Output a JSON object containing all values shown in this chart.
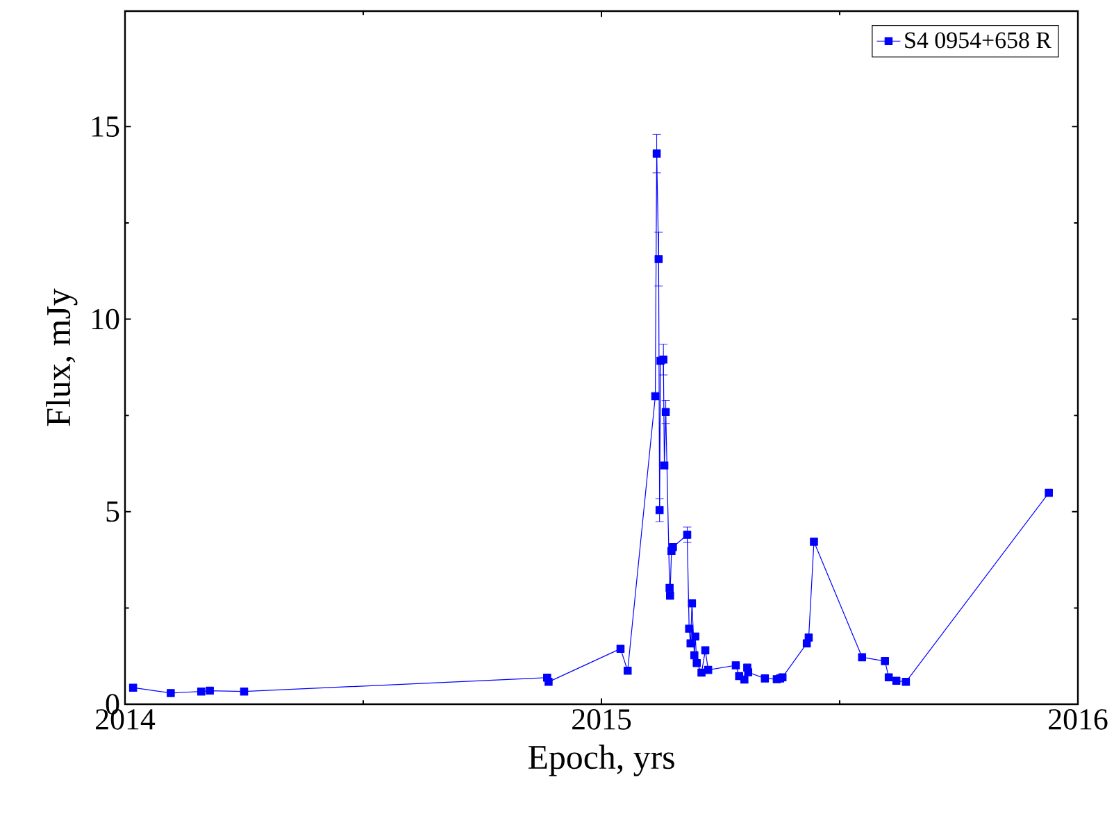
{
  "chart_data": {
    "type": "line",
    "xlabel": "Epoch, yrs",
    "ylabel": "Flux, mJy",
    "x": [
      2014.017,
      2014.096,
      2014.16,
      2014.178,
      2014.25,
      2014.886,
      2014.889,
      2015.04,
      2015.055,
      2015.113,
      2015.116,
      2015.12,
      2015.122,
      2015.124,
      2015.13,
      2015.132,
      2015.135,
      2015.143,
      2015.144,
      2015.147,
      2015.15,
      2015.18,
      2015.184,
      2015.187,
      2015.19,
      2015.195,
      2015.197,
      2015.2,
      2015.21,
      2015.218,
      2015.224,
      2015.282,
      2015.289,
      2015.3,
      2015.306,
      2015.308,
      2015.343,
      2015.368,
      2015.375,
      2015.38,
      2015.431,
      2015.435,
      2015.446,
      2015.547,
      2015.595,
      2015.603,
      2015.619,
      2015.639,
      2015.939
    ],
    "series": [
      {
        "name": "S4 0954+658 R",
        "color": "#0000ff",
        "values": [
          0.43,
          0.29,
          0.33,
          0.35,
          0.33,
          0.69,
          0.58,
          1.44,
          0.87,
          8.0,
          14.3,
          11.56,
          5.04,
          8.92,
          8.95,
          6.2,
          7.59,
          3.02,
          2.82,
          3.98,
          4.08,
          4.4,
          1.96,
          1.58,
          2.62,
          1.27,
          1.76,
          1.07,
          0.82,
          1.4,
          0.89,
          1.01,
          0.73,
          0.64,
          0.95,
          0.83,
          0.67,
          0.65,
          0.67,
          0.7,
          1.58,
          1.73,
          4.22,
          1.22,
          1.12,
          0.7,
          0.61,
          0.58,
          5.49
        ],
        "errors": [
          null,
          null,
          null,
          null,
          null,
          null,
          null,
          null,
          null,
          null,
          0.5,
          0.7,
          0.3,
          null,
          0.4,
          null,
          0.3,
          null,
          null,
          null,
          null,
          0.2,
          null,
          null,
          null,
          null,
          null,
          null,
          null,
          null,
          null,
          null,
          null,
          null,
          null,
          null,
          null,
          null,
          null,
          null,
          null,
          null,
          null,
          null,
          null,
          null,
          null,
          null,
          null
        ]
      }
    ],
    "xlim": [
      2014,
      2016
    ],
    "ylim": [
      0,
      18
    ],
    "xticks": [
      2014,
      2015,
      2016
    ],
    "yticks": [
      0,
      5,
      10,
      15
    ],
    "marker": "square",
    "line_style": "solid",
    "legend": "top right",
    "grid": false
  }
}
